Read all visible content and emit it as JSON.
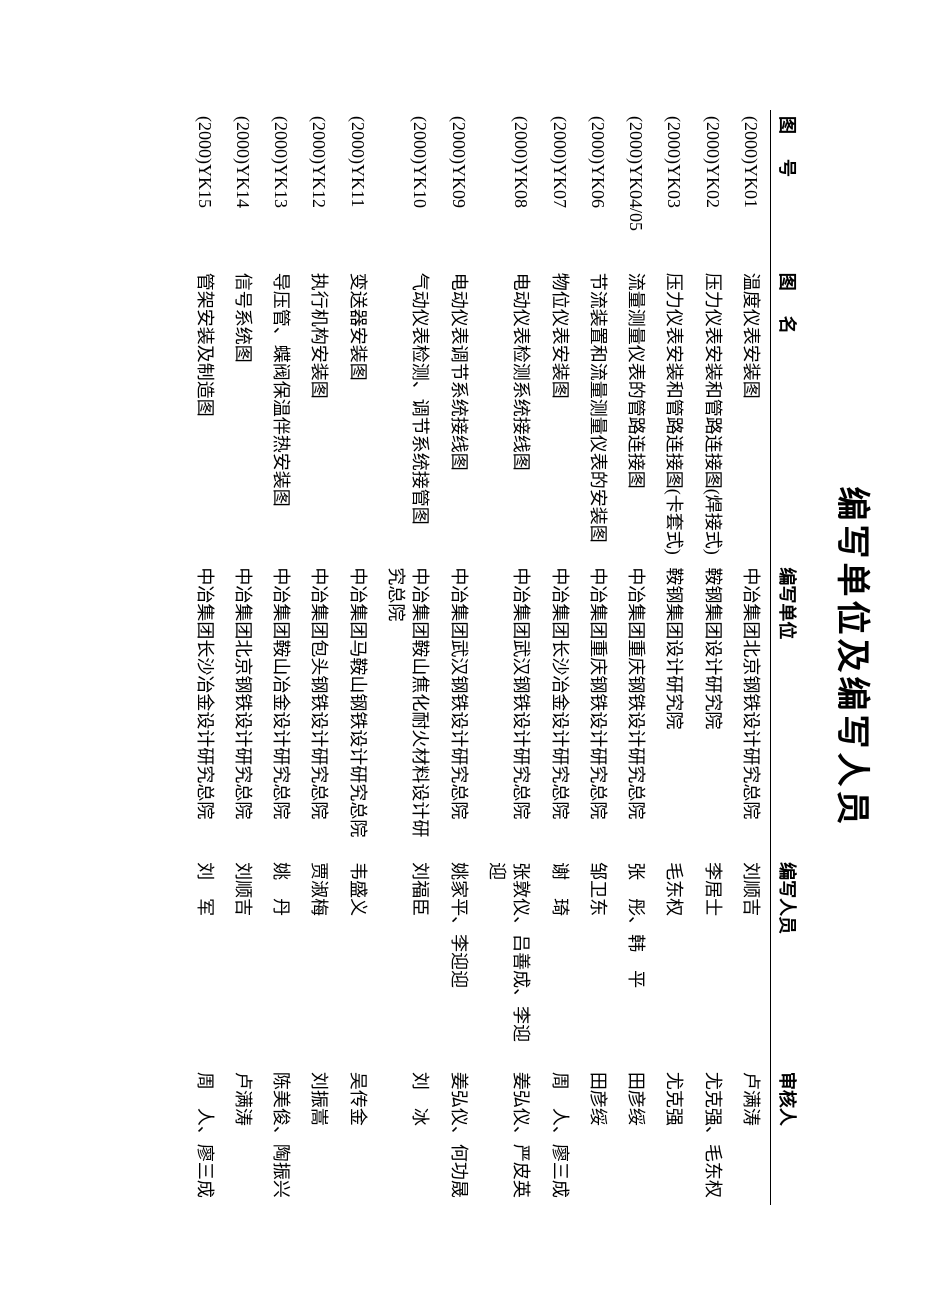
{
  "title": "编写单位及编写人员",
  "columns": [
    "图 号",
    "图 名",
    "编写单位",
    "编写人员",
    "审核人"
  ],
  "rows": [
    {
      "id": "(2000)YK01",
      "name": "温度仪表安装图",
      "org": "中冶集团北京钢铁设计研究总院",
      "authors": "刘顺吉",
      "reviewers": "卢满涛"
    },
    {
      "id": "(2000)YK02",
      "name": "压力仪表安装和管路连接图(焊接式)",
      "org": "鞍钢集团设计研究院",
      "authors": "李居士",
      "reviewers": "尤克强、毛东权"
    },
    {
      "id": "(2000)YK03",
      "name": "压力仪表安装和管路连接图(卡套式)",
      "org": "鞍钢集团设计研究院",
      "authors": "毛东权",
      "reviewers": "尤克强"
    },
    {
      "id": "(2000)YK04/05",
      "name": "流量测量仪表的管路连接图",
      "org": "中冶集团重庆钢铁设计研究总院",
      "authors": "张　彤、韩　平",
      "reviewers": "田彦绥"
    },
    {
      "id": "(2000)YK06",
      "name": "节流装置和流量测量仪表的安装图",
      "org": "中冶集团重庆钢铁设计研究总院",
      "authors": "邹卫东",
      "reviewers": "田彦绥"
    },
    {
      "id": "(2000)YK07",
      "name": "物位仪表安装图",
      "org": "中冶集团长沙冶金设计研究总院",
      "authors": "谢　琦",
      "reviewers": "周　人、廖三成"
    },
    {
      "id": "(2000)YK08",
      "name": "电动仪表检测系统接线图",
      "org": "中冶集团武汉钢铁设计研究总院",
      "authors": "张敦仪、吕善成、李迎迎",
      "reviewers": "姜弘仪、严皮英"
    },
    {
      "id": "(2000)YK09",
      "name": "电动仪表调节系统接线图",
      "org": "中冶集团武汉钢铁设计研究总院",
      "authors": "姚家平、李迎迎",
      "reviewers": "姜弘仪、何功晟"
    },
    {
      "id": "(2000)YK10",
      "name": "气动仪表检测、调节系统接管图",
      "org": "中冶集团鞍山焦化耐火材料设计研究总院",
      "authors": "刘福臣",
      "reviewers": "刘　冰"
    },
    {
      "id": "(2000)YK11",
      "name": "变送器安装图",
      "org": "中冶集团马鞍山钢铁设计研究总院",
      "authors": "韦盛义",
      "reviewers": "吴传金"
    },
    {
      "id": "(2000)YK12",
      "name": "执行机构安装图",
      "org": "中冶集团包头钢铁设计研究总院",
      "authors": "贾淑梅",
      "reviewers": "刘振嵩"
    },
    {
      "id": "(2000)YK13",
      "name": "导压管、蝶阀保温伴热安装图",
      "org": "中冶集团鞍山冶金设计研究总院",
      "authors": "姚　丹",
      "reviewers": "陈美俊、陶振兴"
    },
    {
      "id": "(2000)YK14",
      "name": "信号系统图",
      "org": "中冶集团北京钢铁设计研究总院",
      "authors": "刘顺吉",
      "reviewers": "卢满涛"
    },
    {
      "id": "(2000)YK15",
      "name": "管架安装及制造图",
      "org": "中冶集团长沙冶金设计研究总院",
      "authors": "刘　军",
      "reviewers": "周　人、廖三成"
    }
  ]
}
